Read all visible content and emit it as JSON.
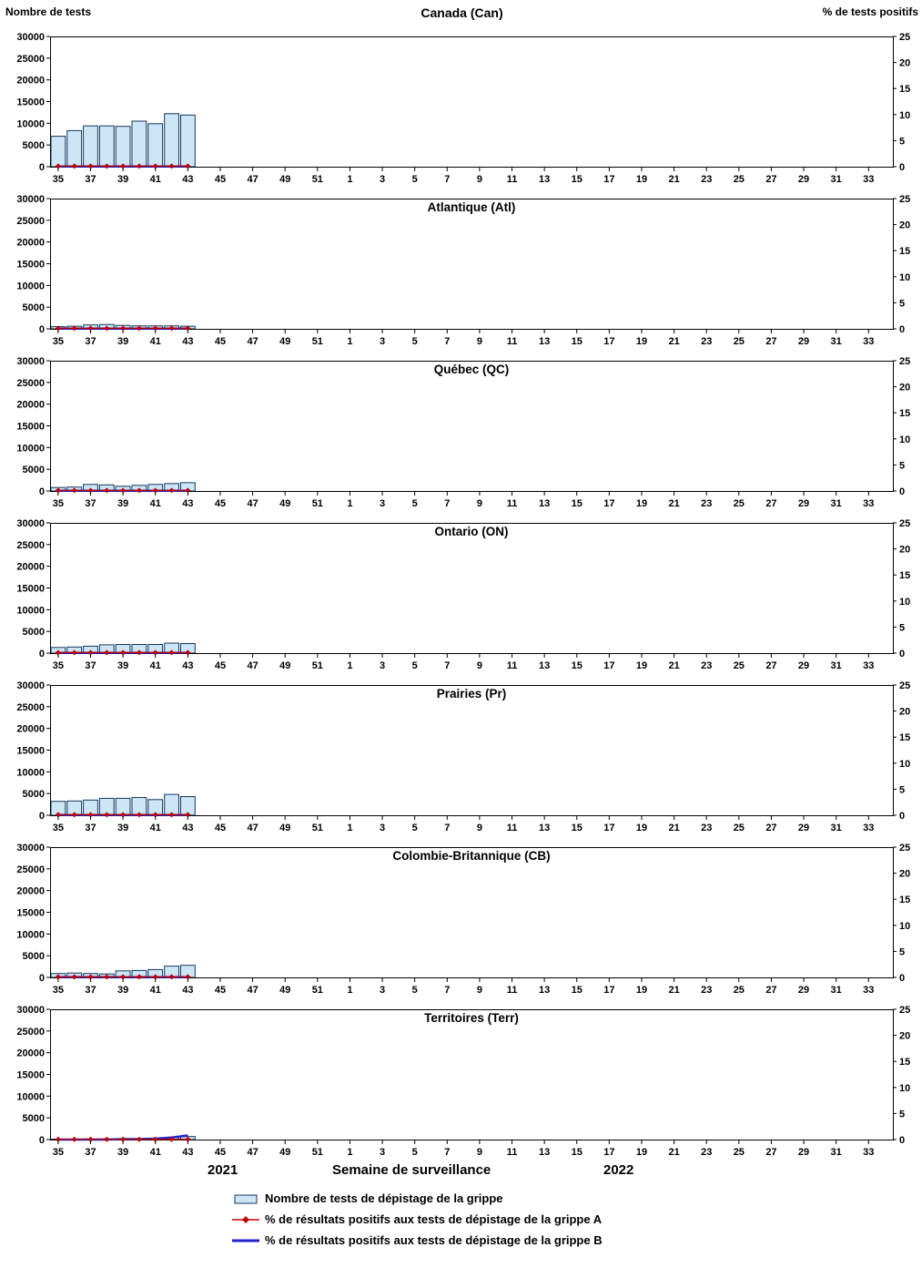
{
  "labels": {
    "left_axis": "Nombre de tests",
    "right_axis": "% de tests positifs",
    "year_left": "2021",
    "x_axis_title": "Semaine de surveillance",
    "year_right": "2022"
  },
  "legend": [
    {
      "type": "bar",
      "label": "Nombre de tests de dépistage de la grippe"
    },
    {
      "type": "line-a",
      "label": "% de résultats positifs aux tests de dépistage de la grippe A"
    },
    {
      "type": "line-b",
      "label": "% de résultats positifs aux tests de dépistage de la grippe B"
    }
  ],
  "colors": {
    "bar_fill": "#CDE6F7",
    "bar_stroke": "#16365C",
    "flu_a": "#C00000",
    "flu_b": "#2222CC",
    "frame": "#000000",
    "text": "#000000"
  },
  "axes": {
    "left_ticks": [
      0,
      5000,
      10000,
      15000,
      20000,
      25000,
      30000
    ],
    "right_ticks": [
      0,
      5,
      10,
      15,
      20,
      25
    ],
    "left_max": 30000,
    "right_max": 25,
    "week_tick_labels": [
      "35",
      "37",
      "39",
      "41",
      "43",
      "45",
      "47",
      "49",
      "51",
      "1",
      "3",
      "5",
      "7",
      "9",
      "11",
      "13",
      "15",
      "17",
      "19",
      "21",
      "23",
      "25",
      "27",
      "29",
      "31",
      "33"
    ]
  },
  "chart_data": [
    {
      "type": "bar",
      "title": "Canada (Can)",
      "x_weeks": [
        35,
        36,
        37,
        38,
        39,
        40,
        41,
        42,
        43
      ],
      "ylim_left": [
        0,
        30000
      ],
      "ylim_right": [
        0,
        25
      ],
      "series": [
        {
          "name": "Nombre de tests de dépistage de la grippe",
          "type": "bar",
          "axis": "left",
          "values": [
            7000,
            8300,
            9400,
            9400,
            9300,
            10500,
            9900,
            12200,
            11900
          ]
        },
        {
          "name": "% de résultats positifs aux tests de dépistage de la grippe A",
          "type": "line",
          "axis": "right",
          "values": [
            0.1,
            0.1,
            0.1,
            0.1,
            0.1,
            0.1,
            0.1,
            0.1,
            0.1
          ]
        },
        {
          "name": "% de résultats positifs aux tests de dépistage de la grippe B",
          "type": "line",
          "axis": "right",
          "values": [
            0.05,
            0.05,
            0.05,
            0.05,
            0.05,
            0.05,
            0.05,
            0.05,
            0.05
          ]
        }
      ]
    },
    {
      "type": "bar",
      "title": "Atlantique (Atl)",
      "x_weeks": [
        35,
        36,
        37,
        38,
        39,
        40,
        41,
        42,
        43
      ],
      "ylim_left": [
        0,
        30000
      ],
      "ylim_right": [
        0,
        25
      ],
      "series": [
        {
          "name": "Nombre de tests de dépistage de la grippe",
          "type": "bar",
          "axis": "left",
          "values": [
            500,
            600,
            900,
            1000,
            800,
            700,
            700,
            700,
            600
          ]
        },
        {
          "name": "% de résultats positifs aux tests de dépistage de la grippe A",
          "type": "line",
          "axis": "right",
          "values": [
            0.1,
            0.1,
            0.1,
            0.1,
            0.1,
            0.1,
            0.1,
            0.1,
            0.1
          ]
        },
        {
          "name": "% de résultats positifs aux tests de dépistage de la grippe B",
          "type": "line",
          "axis": "right",
          "values": [
            0.05,
            0.05,
            0.05,
            0.05,
            0.05,
            0.05,
            0.05,
            0.05,
            0.05
          ]
        }
      ]
    },
    {
      "type": "bar",
      "title": "Québec (QC)",
      "x_weeks": [
        35,
        36,
        37,
        38,
        39,
        40,
        41,
        42,
        43
      ],
      "ylim_left": [
        0,
        30000
      ],
      "ylim_right": [
        0,
        25
      ],
      "series": [
        {
          "name": "Nombre de tests de dépistage de la grippe",
          "type": "bar",
          "axis": "left",
          "values": [
            800,
            900,
            1500,
            1400,
            1100,
            1300,
            1500,
            1700,
            1900
          ]
        },
        {
          "name": "% de résultats positifs aux tests de dépistage de la grippe A",
          "type": "line",
          "axis": "right",
          "values": [
            0.1,
            0.1,
            0.1,
            0.1,
            0.1,
            0.1,
            0.1,
            0.1,
            0.1
          ]
        },
        {
          "name": "% de résultats positifs aux tests de dépistage de la grippe B",
          "type": "line",
          "axis": "right",
          "values": [
            0.05,
            0.05,
            0.05,
            0.05,
            0.05,
            0.05,
            0.05,
            0.05,
            0.05
          ]
        }
      ]
    },
    {
      "type": "bar",
      "title": "Ontario (ON)",
      "x_weeks": [
        35,
        36,
        37,
        38,
        39,
        40,
        41,
        42,
        43
      ],
      "ylim_left": [
        0,
        30000
      ],
      "ylim_right": [
        0,
        25
      ],
      "series": [
        {
          "name": "Nombre de tests de dépistage de la grippe",
          "type": "bar",
          "axis": "left",
          "values": [
            1300,
            1400,
            1600,
            1900,
            2000,
            2000,
            2000,
            2300,
            2200
          ]
        },
        {
          "name": "% de résultats positifs aux tests de dépistage de la grippe A",
          "type": "line",
          "axis": "right",
          "values": [
            0.1,
            0.1,
            0.1,
            0.1,
            0.1,
            0.1,
            0.1,
            0.1,
            0.1
          ]
        },
        {
          "name": "% de résultats positifs aux tests de dépistage de la grippe B",
          "type": "line",
          "axis": "right",
          "values": [
            0.05,
            0.05,
            0.05,
            0.05,
            0.05,
            0.05,
            0.05,
            0.05,
            0.05
          ]
        }
      ]
    },
    {
      "type": "bar",
      "title": "Prairies (Pr)",
      "x_weeks": [
        35,
        36,
        37,
        38,
        39,
        40,
        41,
        42,
        43
      ],
      "ylim_left": [
        0,
        30000
      ],
      "ylim_right": [
        0,
        25
      ],
      "series": [
        {
          "name": "Nombre de tests de dépistage de la grippe",
          "type": "bar",
          "axis": "left",
          "values": [
            3200,
            3300,
            3500,
            3900,
            3900,
            4100,
            3600,
            4800,
            4300
          ]
        },
        {
          "name": "% de résultats positifs aux tests de dépistage de la grippe A",
          "type": "line",
          "axis": "right",
          "values": [
            0.1,
            0.1,
            0.1,
            0.1,
            0.1,
            0.1,
            0.1,
            0.1,
            0.1
          ]
        },
        {
          "name": "% de résultats positifs aux tests de dépistage de la grippe B",
          "type": "line",
          "axis": "right",
          "values": [
            0.05,
            0.05,
            0.05,
            0.05,
            0.05,
            0.05,
            0.05,
            0.05,
            0.05
          ]
        }
      ]
    },
    {
      "type": "bar",
      "title": "Colombie-Britannique (CB)",
      "x_weeks": [
        35,
        36,
        37,
        38,
        39,
        40,
        41,
        42,
        43
      ],
      "ylim_left": [
        0,
        30000
      ],
      "ylim_right": [
        0,
        25
      ],
      "series": [
        {
          "name": "Nombre de tests de dépistage de la grippe",
          "type": "bar",
          "axis": "left",
          "values": [
            900,
            1000,
            900,
            800,
            1500,
            1600,
            1800,
            2600,
            2800
          ]
        },
        {
          "name": "% de résultats positifs aux tests de dépistage de la grippe A",
          "type": "line",
          "axis": "right",
          "values": [
            0.1,
            0.1,
            0.1,
            0.1,
            0.1,
            0.1,
            0.1,
            0.1,
            0.1
          ]
        },
        {
          "name": "% de résultats positifs aux tests de dépistage de la grippe B",
          "type": "line",
          "axis": "right",
          "values": [
            0.05,
            0.05,
            0.05,
            0.05,
            0.05,
            0.05,
            0.05,
            0.05,
            0.05
          ]
        }
      ]
    },
    {
      "type": "bar",
      "title": "Territoires (Terr)",
      "x_weeks": [
        35,
        36,
        37,
        38,
        39,
        40,
        41,
        42,
        43
      ],
      "ylim_left": [
        0,
        30000
      ],
      "ylim_right": [
        0,
        25
      ],
      "series": [
        {
          "name": "Nombre de tests de dépistage de la grippe",
          "type": "bar",
          "axis": "left",
          "values": [
            100,
            100,
            150,
            150,
            150,
            200,
            250,
            450,
            700
          ]
        },
        {
          "name": "% de résultats positifs aux tests de dépistage de la grippe A",
          "type": "line",
          "axis": "right",
          "values": [
            0.05,
            0.05,
            0.05,
            0.05,
            0.05,
            0.05,
            0.05,
            0.05,
            0.05
          ]
        },
        {
          "name": "% de résultats positifs aux tests de dépistage de la grippe B",
          "type": "line",
          "axis": "right",
          "values": [
            0,
            0,
            0,
            0,
            0.1,
            0.1,
            0.2,
            0.4,
            0.8
          ]
        }
      ]
    }
  ]
}
